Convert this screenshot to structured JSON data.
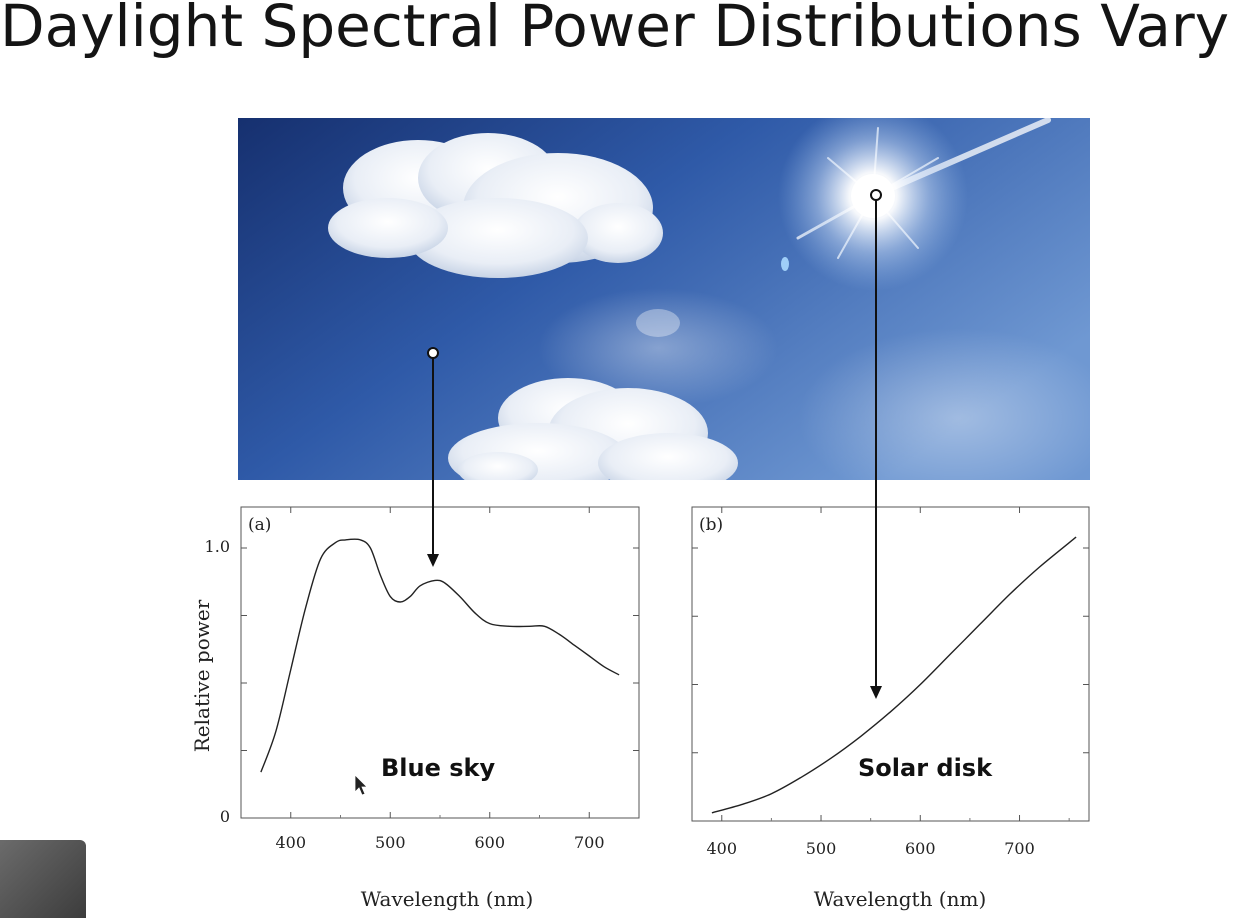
{
  "slide": {
    "title": "Daylight Spectral Power Distributions Vary"
  },
  "photo": {
    "subject": "sky-photo"
  },
  "chart_data": [
    {
      "type": "line",
      "panel_label": "(a)",
      "annotation": "Blue sky",
      "xlabel": "Wavelength (nm)",
      "ylabel": "Relative power",
      "xlim": [
        350,
        750
      ],
      "ylim": [
        0,
        1.1
      ],
      "xticks": [
        400,
        500,
        600,
        700
      ],
      "yticks": [
        0,
        1.0
      ],
      "ytick_labels": [
        "0",
        "1.0"
      ],
      "series": [
        {
          "x": [
            370,
            385,
            400,
            415,
            430,
            445,
            455,
            470,
            480,
            490,
            500,
            510,
            520,
            530,
            545,
            555,
            570,
            585,
            600,
            620,
            640,
            655,
            670,
            685,
            700,
            715,
            730
          ],
          "y": [
            0.17,
            0.32,
            0.55,
            0.78,
            0.96,
            1.02,
            1.03,
            1.03,
            1.0,
            0.9,
            0.82,
            0.8,
            0.82,
            0.86,
            0.88,
            0.87,
            0.82,
            0.76,
            0.72,
            0.71,
            0.71,
            0.71,
            0.68,
            0.64,
            0.6,
            0.56,
            0.53
          ]
        }
      ],
      "color": "#222222"
    },
    {
      "type": "line",
      "panel_label": "(b)",
      "annotation": "Solar disk",
      "xlabel": "Wavelength (nm)",
      "ylabel": "",
      "xlim": [
        370,
        770
      ],
      "ylim": [
        0,
        1.1
      ],
      "xticks": [
        400,
        500,
        600,
        700
      ],
      "series": [
        {
          "x": [
            390,
            420,
            450,
            480,
            510,
            540,
            570,
            600,
            630,
            660,
            690,
            720,
            757
          ],
          "y": [
            0.03,
            0.06,
            0.1,
            0.16,
            0.23,
            0.31,
            0.4,
            0.5,
            0.61,
            0.72,
            0.83,
            0.93,
            1.04
          ]
        }
      ],
      "color": "#222222"
    }
  ],
  "colors": {
    "sky_dark": "#1d3c82",
    "sky_light": "#7fa6d8",
    "arrow": "#111111"
  }
}
